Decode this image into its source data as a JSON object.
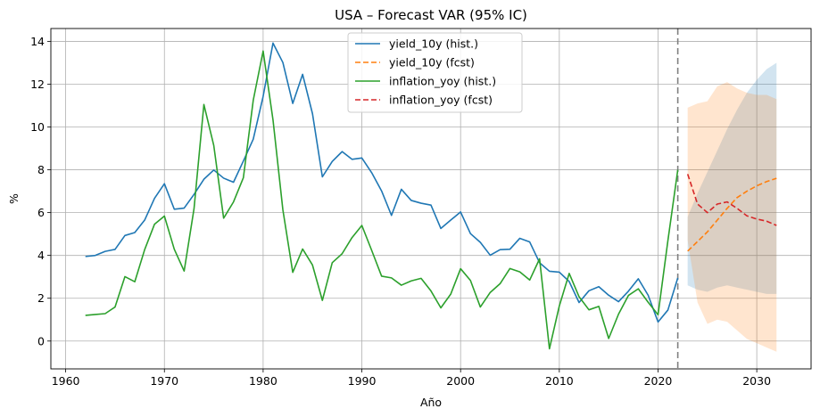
{
  "chart_data": {
    "type": "line",
    "title": "USA – Forecast VAR (95% IC)",
    "xlabel": "Año",
    "ylabel": "%",
    "xlim": [
      1958.5,
      2035.5
    ],
    "ylim": [
      -1.3,
      14.6
    ],
    "x_ticks": [
      1960,
      1970,
      1980,
      1990,
      2000,
      2010,
      2020,
      2030
    ],
    "x_tick_labels": [
      "1960",
      "1970",
      "1980",
      "1990",
      "2000",
      "2010",
      "2020",
      "2030"
    ],
    "y_ticks": [
      0,
      2,
      4,
      6,
      8,
      10,
      12,
      14
    ],
    "y_tick_labels": [
      "0",
      "2",
      "4",
      "6",
      "8",
      "10",
      "12",
      "14"
    ],
    "grid": true,
    "legend_position": "top-center",
    "forecast_start_marker": 2022,
    "series": [
      {
        "name": "yield_10y (hist.)",
        "color": "#1f77b4",
        "style": "solid",
        "x": [
          1962,
          1963,
          1964,
          1965,
          1966,
          1967,
          1968,
          1969,
          1970,
          1971,
          1972,
          1973,
          1974,
          1975,
          1976,
          1977,
          1978,
          1979,
          1980,
          1981,
          1982,
          1983,
          1984,
          1985,
          1986,
          1987,
          1988,
          1989,
          1990,
          1991,
          1992,
          1993,
          1994,
          1995,
          1996,
          1997,
          1998,
          1999,
          2000,
          2001,
          2002,
          2003,
          2004,
          2005,
          2006,
          2007,
          2008,
          2009,
          2010,
          2011,
          2012,
          2013,
          2014,
          2015,
          2016,
          2017,
          2018,
          2019,
          2020,
          2021,
          2022
        ],
        "values": [
          3.95,
          4.0,
          4.19,
          4.28,
          4.93,
          5.07,
          5.65,
          6.67,
          7.35,
          6.16,
          6.21,
          6.85,
          7.56,
          7.99,
          7.61,
          7.42,
          8.41,
          9.43,
          11.43,
          13.92,
          13.01,
          11.1,
          12.46,
          10.62,
          7.67,
          8.39,
          8.85,
          8.49,
          8.55,
          7.86,
          7.01,
          5.87,
          7.09,
          6.57,
          6.44,
          6.35,
          5.26,
          5.65,
          6.03,
          5.02,
          4.61,
          4.01,
          4.27,
          4.29,
          4.8,
          4.63,
          3.66,
          3.26,
          3.22,
          2.78,
          1.8,
          2.35,
          2.54,
          2.14,
          1.84,
          2.33,
          2.91,
          2.14,
          0.89,
          1.45,
          2.95
        ]
      },
      {
        "name": "yield_10y (fcst)",
        "color": "#ff7f0e",
        "style": "dashed",
        "x": [
          2023,
          2024,
          2025,
          2026,
          2027,
          2028,
          2029,
          2030,
          2031,
          2032
        ],
        "values": [
          4.2,
          4.65,
          5.1,
          5.65,
          6.2,
          6.7,
          7.0,
          7.25,
          7.45,
          7.6
        ]
      },
      {
        "name": "inflation_yoy (hist.)",
        "color": "#2ca02c",
        "style": "solid",
        "x": [
          1962,
          1963,
          1964,
          1965,
          1966,
          1967,
          1968,
          1969,
          1970,
          1971,
          1972,
          1973,
          1974,
          1975,
          1976,
          1977,
          1978,
          1979,
          1980,
          1981,
          1982,
          1983,
          1984,
          1985,
          1986,
          1987,
          1988,
          1989,
          1990,
          1991,
          1992,
          1993,
          1994,
          1995,
          1996,
          1997,
          1998,
          1999,
          2000,
          2001,
          2002,
          2003,
          2004,
          2005,
          2006,
          2007,
          2008,
          2009,
          2010,
          2011,
          2012,
          2013,
          2014,
          2015,
          2016,
          2017,
          2018,
          2019,
          2020,
          2021,
          2022
        ],
        "values": [
          1.2,
          1.24,
          1.28,
          1.59,
          3.01,
          2.77,
          4.27,
          5.46,
          5.84,
          4.29,
          3.27,
          6.18,
          11.05,
          9.14,
          5.74,
          6.5,
          7.63,
          11.25,
          13.55,
          10.33,
          6.13,
          3.21,
          4.3,
          3.55,
          1.9,
          3.66,
          4.08,
          4.83,
          5.4,
          4.23,
          3.03,
          2.95,
          2.61,
          2.81,
          2.93,
          2.34,
          1.55,
          2.19,
          3.38,
          2.83,
          1.59,
          2.27,
          2.68,
          3.39,
          3.23,
          2.85,
          3.84,
          -0.36,
          1.64,
          3.16,
          2.07,
          1.46,
          1.62,
          0.12,
          1.26,
          2.13,
          2.44,
          1.81,
          1.23,
          4.7,
          8.0
        ]
      },
      {
        "name": "inflation_yoy (fcst)",
        "color": "#d62728",
        "style": "dashed",
        "x": [
          2023,
          2024,
          2025,
          2026,
          2027,
          2028,
          2029,
          2030,
          2031,
          2032
        ],
        "values": [
          7.8,
          6.4,
          6.0,
          6.4,
          6.5,
          6.2,
          5.85,
          5.7,
          5.6,
          5.4
        ]
      }
    ],
    "confidence_bands": [
      {
        "series": "yield_10y (fcst)",
        "color": "#1f77b4",
        "opacity": 0.2,
        "x": [
          2023,
          2024,
          2025,
          2026,
          2027,
          2028,
          2029,
          2030,
          2031,
          2032
        ],
        "lower": [
          2.6,
          2.4,
          2.3,
          2.5,
          2.6,
          2.5,
          2.4,
          2.3,
          2.2,
          2.2
        ],
        "upper": [
          5.8,
          6.9,
          7.9,
          8.9,
          9.9,
          10.8,
          11.6,
          12.2,
          12.7,
          13.0
        ]
      },
      {
        "series": "inflation_yoy (fcst)",
        "color": "#ff7f0e",
        "opacity": 0.2,
        "x": [
          2023,
          2024,
          2025,
          2026,
          2027,
          2028,
          2029,
          2030,
          2031,
          2032
        ],
        "lower": [
          4.7,
          1.8,
          0.8,
          1.0,
          0.9,
          0.5,
          0.1,
          -0.1,
          -0.3,
          -0.5
        ],
        "upper": [
          10.9,
          11.1,
          11.2,
          11.9,
          12.1,
          11.8,
          11.6,
          11.5,
          11.5,
          11.3
        ]
      }
    ]
  }
}
